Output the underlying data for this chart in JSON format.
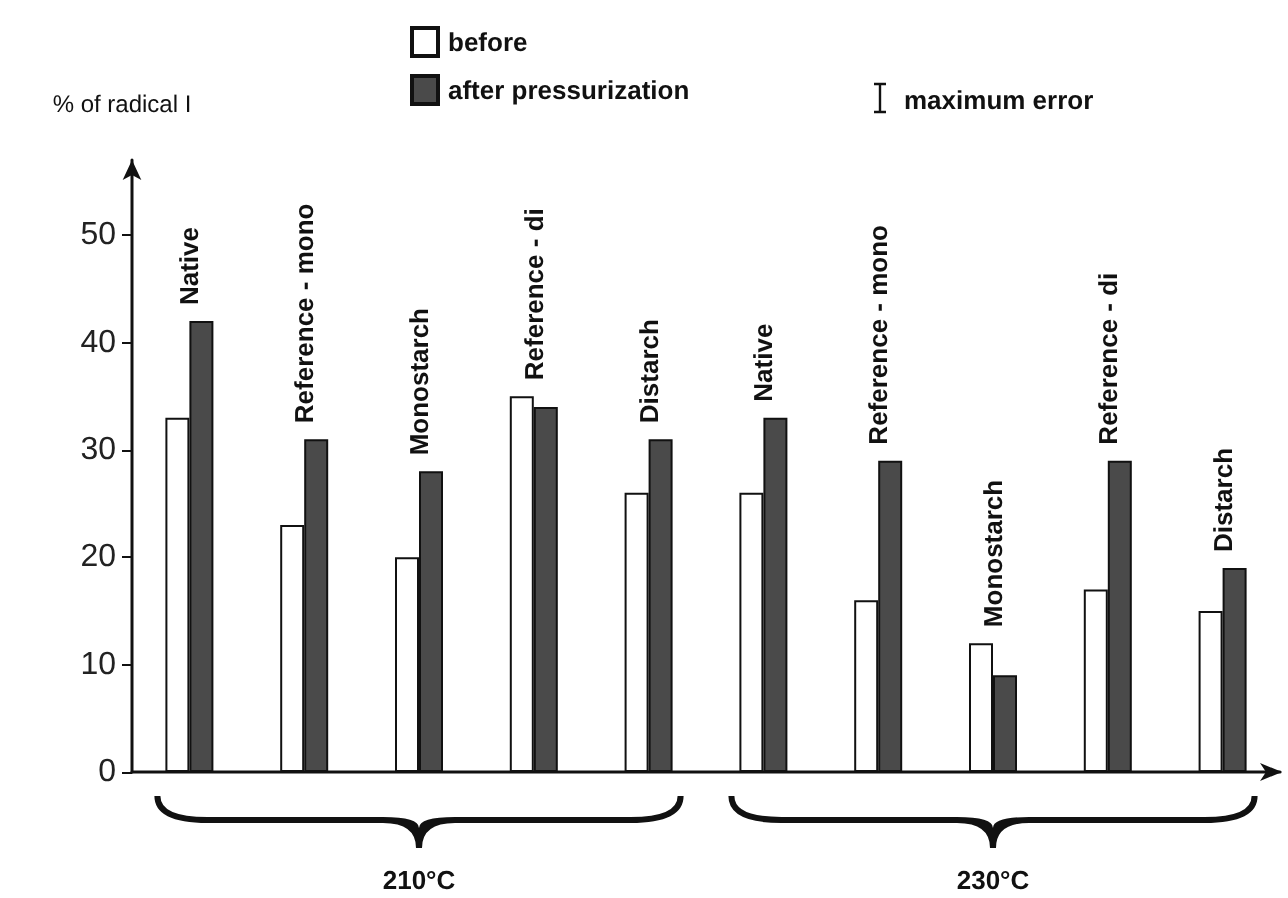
{
  "chart_data": {
    "type": "bar",
    "ylabel": "% of radical I",
    "categories": [
      "Native",
      "Reference - mono",
      "Monostarch",
      "Reference - di",
      "Distarch",
      "Native",
      "Reference - mono",
      "Monostarch",
      "Reference - di",
      "Distarch"
    ],
    "series": [
      {
        "name": "before",
        "color": "#ffffff",
        "values": [
          33,
          23,
          20,
          35,
          26,
          26,
          16,
          12,
          17,
          15
        ]
      },
      {
        "name": "after pressurization",
        "color": "#4a4a4a",
        "values": [
          42,
          31,
          28,
          34,
          31,
          33,
          29,
          9,
          29,
          19
        ]
      }
    ],
    "ylim": [
      0,
      57
    ],
    "yticks": [
      0,
      10,
      20,
      30,
      40,
      50
    ],
    "grid": false,
    "legend": "top",
    "annotations": [
      "maximum error",
      "210°C",
      "230°C"
    ]
  }
}
